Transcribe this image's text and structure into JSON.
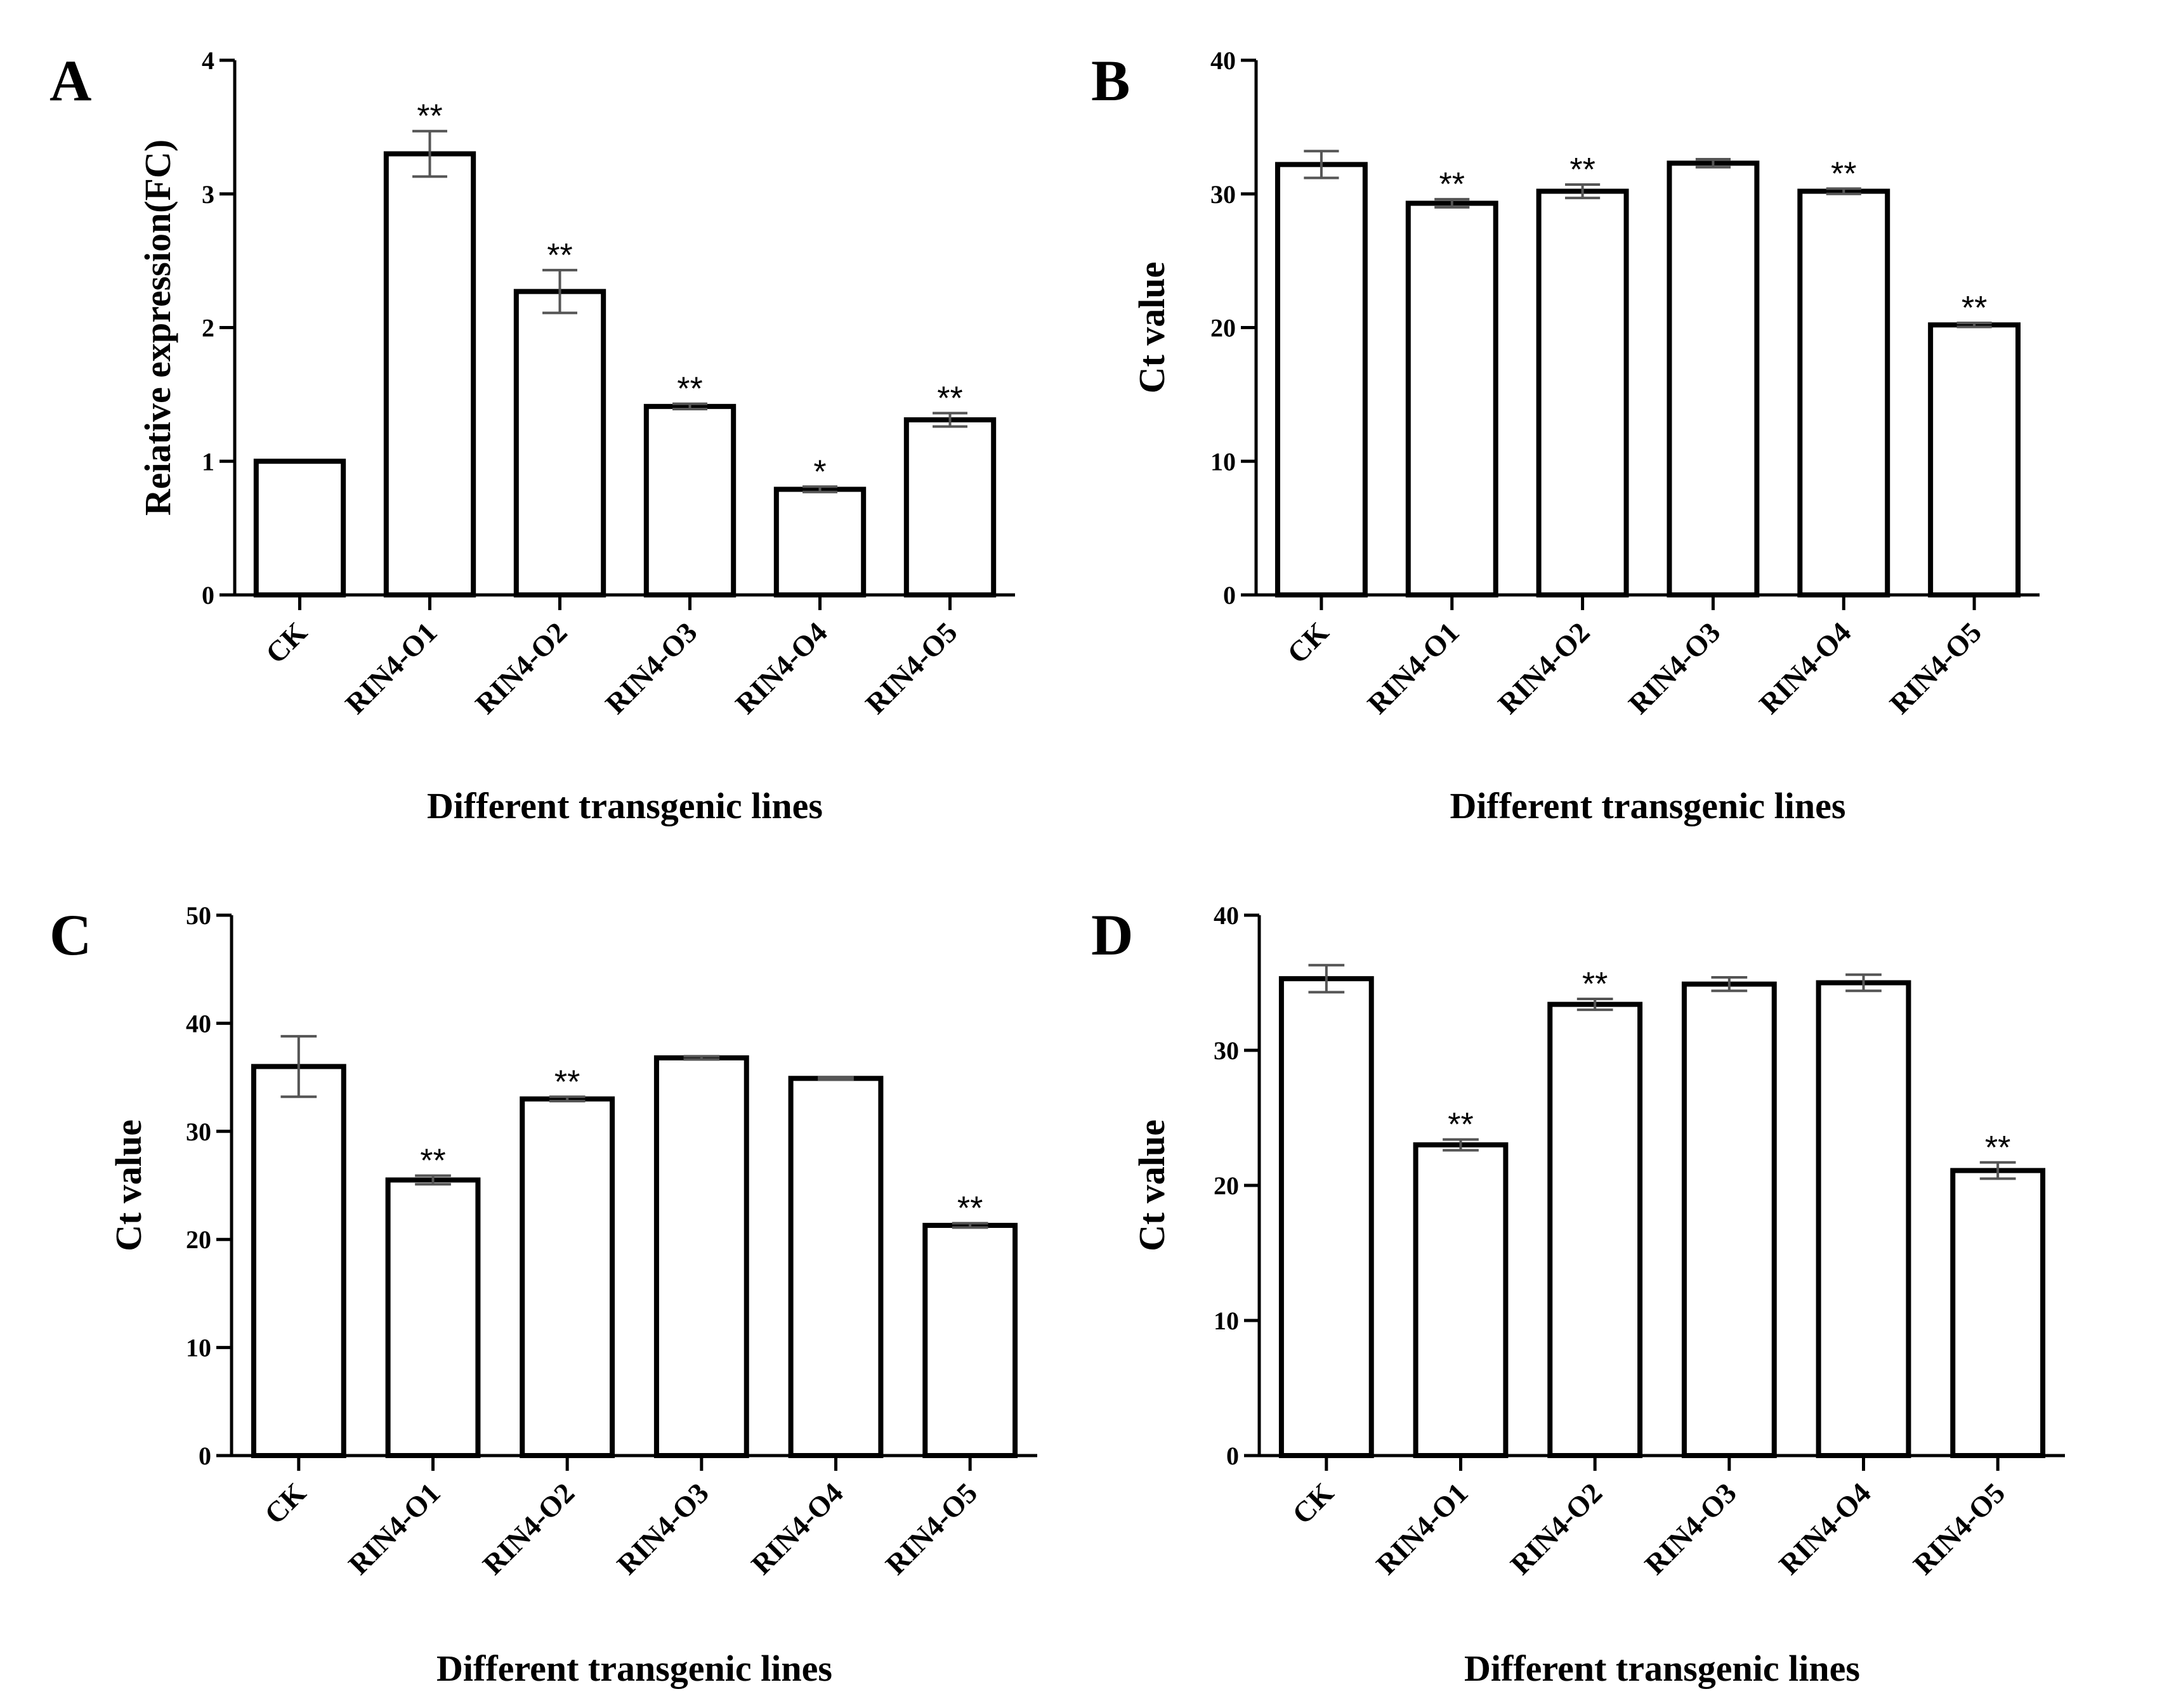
{
  "chart_data": [
    {
      "panel": "A",
      "type": "bar",
      "title": "",
      "xlabel": "Different transgenic lines",
      "ylabel": "Reiative expression(FC)",
      "ylim": [
        0,
        4
      ],
      "yticks": [
        0,
        1,
        2,
        3,
        4
      ],
      "categories": [
        "CK",
        "RIN4-O1",
        "RIN4-O2",
        "RIN4-O3",
        "RIN4-O4",
        "RIN4-O5"
      ],
      "values": [
        1.0,
        3.3,
        2.27,
        1.41,
        0.79,
        1.31
      ],
      "errors": [
        0.0,
        0.17,
        0.16,
        0.02,
        0.02,
        0.05
      ],
      "significance": [
        "",
        "**",
        "**",
        "**",
        "*",
        "**"
      ]
    },
    {
      "panel": "B",
      "type": "bar",
      "title": "",
      "xlabel": "Different transgenic lines",
      "ylabel": "Ct value",
      "ylim": [
        0,
        40
      ],
      "yticks": [
        0,
        10,
        20,
        30,
        40
      ],
      "categories": [
        "CK",
        "RIN4-O1",
        "RIN4-O2",
        "RIN4-O3",
        "RIN4-O4",
        "RIN4-O5"
      ],
      "values": [
        32.2,
        29.3,
        30.2,
        32.3,
        30.2,
        20.2
      ],
      "errors": [
        1.0,
        0.3,
        0.5,
        0.3,
        0.2,
        0.15
      ],
      "significance": [
        "",
        "**",
        "**",
        "",
        "**",
        "**"
      ]
    },
    {
      "panel": "C",
      "type": "bar",
      "title": "",
      "xlabel": "Different transgenic lines",
      "ylabel": "Ct value",
      "ylim": [
        0,
        50
      ],
      "yticks": [
        0,
        10,
        20,
        30,
        40,
        50
      ],
      "categories": [
        "CK",
        "RIN4-O1",
        "RIN4-O2",
        "RIN4-O3",
        "RIN4-O4",
        "RIN4-O5"
      ],
      "values": [
        36.0,
        25.5,
        33.0,
        36.8,
        34.9,
        21.3
      ],
      "errors": [
        2.8,
        0.4,
        0.2,
        0.15,
        0.1,
        0.2
      ],
      "significance": [
        "",
        "**",
        "**",
        "",
        "",
        "**"
      ]
    },
    {
      "panel": "D",
      "type": "bar",
      "title": "",
      "xlabel": "Different transgenic lines",
      "ylabel": "Ct value",
      "ylim": [
        0,
        40
      ],
      "yticks": [
        0,
        10,
        20,
        30,
        40
      ],
      "categories": [
        "CK",
        "RIN4-O1",
        "RIN4-O2",
        "RIN4-O3",
        "RIN4-O4",
        "RIN4-O5"
      ],
      "values": [
        35.3,
        23.0,
        33.4,
        34.9,
        35.0,
        21.1
      ],
      "errors": [
        1.0,
        0.4,
        0.4,
        0.5,
        0.6,
        0.6
      ],
      "significance": [
        "",
        "**",
        "**",
        "",
        "",
        "**"
      ]
    }
  ]
}
